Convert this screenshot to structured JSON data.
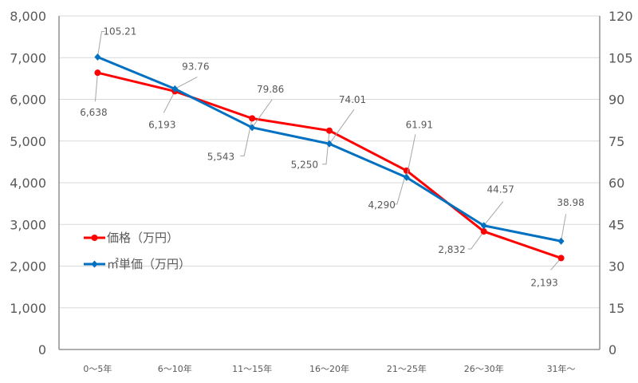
{
  "chart_data": {
    "type": "line",
    "title": "",
    "categories": [
      "0～5年",
      "6～10年",
      "11～15年",
      "16～20年",
      "21～25年",
      "26～30年",
      "31年～"
    ],
    "series": [
      {
        "name": "価格（万円）",
        "axis": "left",
        "color": "#ff0000",
        "marker": "circle",
        "values": [
          6638,
          6193,
          5543,
          5250,
          4290,
          2832,
          2193
        ],
        "labels": [
          "6,638",
          "6,193",
          "5,543",
          "5,250",
          "4,290",
          "2,832",
          "2,193"
        ]
      },
      {
        "name": "㎡単価（万円）",
        "axis": "right",
        "color": "#0070c0",
        "marker": "diamond",
        "values": [
          105.21,
          93.76,
          79.86,
          74.01,
          61.91,
          44.57,
          38.98
        ],
        "labels": [
          "105.21",
          "93.76",
          "79.86",
          "74.01",
          "61.91",
          "44.57",
          "38.98"
        ]
      }
    ],
    "y_left": {
      "lim": [
        0,
        8000
      ],
      "ticks": [
        "0",
        "1,000",
        "2,000",
        "3,000",
        "4,000",
        "5,000",
        "6,000",
        "7,000",
        "8,000"
      ]
    },
    "y_right": {
      "lim": [
        0,
        120
      ],
      "ticks": [
        "0",
        "15",
        "30",
        "45",
        "60",
        "75",
        "90",
        "105",
        "120"
      ]
    },
    "grid": true,
    "legend": "middle-left"
  }
}
